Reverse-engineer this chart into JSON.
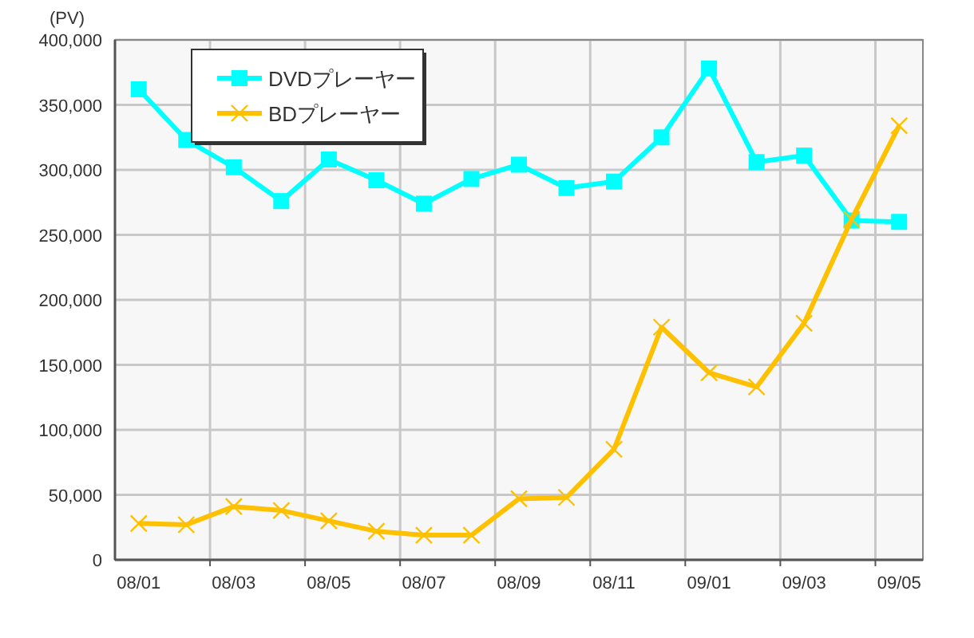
{
  "chart_data": {
    "type": "line",
    "ylabel": "(PV)",
    "categories": [
      "08/01",
      null,
      "08/03",
      null,
      "08/05",
      null,
      "08/07",
      null,
      "08/09",
      null,
      "08/11",
      null,
      "09/01",
      null,
      "09/03",
      null,
      "09/05"
    ],
    "series": [
      {
        "name": "DVDプレーヤー",
        "color": "#00ffff",
        "marker": "square",
        "values": [
          362000,
          323000,
          302000,
          276000,
          308000,
          292000,
          274000,
          293000,
          304000,
          286000,
          291000,
          325000,
          378000,
          306000,
          311000,
          261000,
          260000
        ]
      },
      {
        "name": "BDプレーヤー",
        "color": "#ffc000",
        "marker": "cross",
        "values": [
          28000,
          27000,
          41000,
          38000,
          30000,
          22000,
          19000,
          19000,
          47000,
          48000,
          85000,
          179000,
          144000,
          133000,
          182000,
          262000,
          334000
        ]
      }
    ],
    "ylim": [
      0,
      400000
    ],
    "yticks": [
      {
        "value": 0,
        "label": "0"
      },
      {
        "value": 50000,
        "label": "50,000"
      },
      {
        "value": 100000,
        "label": "100,000"
      },
      {
        "value": 150000,
        "label": "150,000"
      },
      {
        "value": 200000,
        "label": "200,000"
      },
      {
        "value": 250000,
        "label": "250,000"
      },
      {
        "value": 300000,
        "label": "300,000"
      },
      {
        "value": 350000,
        "label": "350,000"
      },
      {
        "value": 400000,
        "label": "400,000"
      }
    ],
    "grid": true,
    "legend": "top left"
  }
}
